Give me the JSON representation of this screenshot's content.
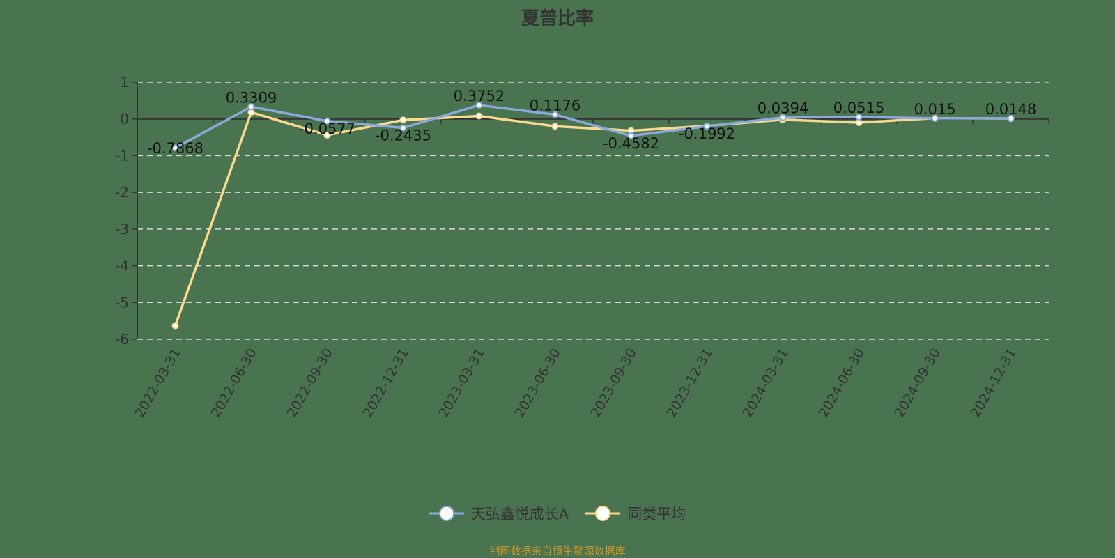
{
  "title": "夏普比率",
  "legend": {
    "items": [
      {
        "label": "天弘鑫悦成长A",
        "color": "#8aa9dc"
      },
      {
        "label": "同类平均",
        "color": "#f9d98e"
      }
    ]
  },
  "source": "制图数据来自恒生聚源数据库",
  "chart_data": {
    "type": "line",
    "title": "夏普比率",
    "xlabel": "",
    "ylabel": "",
    "ylim": [
      -6,
      1
    ],
    "yticks": [
      1,
      0,
      -1,
      -2,
      -3,
      -4,
      -5,
      -6
    ],
    "grid": true,
    "legend_position": "bottom",
    "categories": [
      "2022-03-31",
      "2022-06-30",
      "2022-09-30",
      "2022-12-31",
      "2023-03-31",
      "2023-06-30",
      "2023-09-30",
      "2023-12-31",
      "2024-03-31",
      "2024-06-30",
      "2024-09-30",
      "2024-12-31"
    ],
    "series": [
      {
        "name": "天弘鑫悦成长A",
        "color": "#8aa9dc",
        "values": [
          -0.7868,
          0.3309,
          -0.0577,
          -0.2435,
          0.3752,
          0.1176,
          -0.4582,
          -0.1992,
          0.0394,
          0.0515,
          0.015,
          0.0148
        ],
        "labels": [
          "-0.7868",
          "0.3309",
          "-0.0577",
          "-0.2435",
          "0.3752",
          "0.1176",
          "-0.4582",
          "-0.1992",
          "0.0394",
          "0.0515",
          "0.015",
          "0.0148"
        ]
      },
      {
        "name": "同类平均",
        "color": "#f9d98e",
        "values": [
          -5.63,
          0.18,
          -0.44,
          -0.03,
          0.08,
          -0.2,
          -0.32,
          -0.19,
          -0.02,
          -0.1,
          0.02,
          0.01
        ]
      }
    ]
  }
}
